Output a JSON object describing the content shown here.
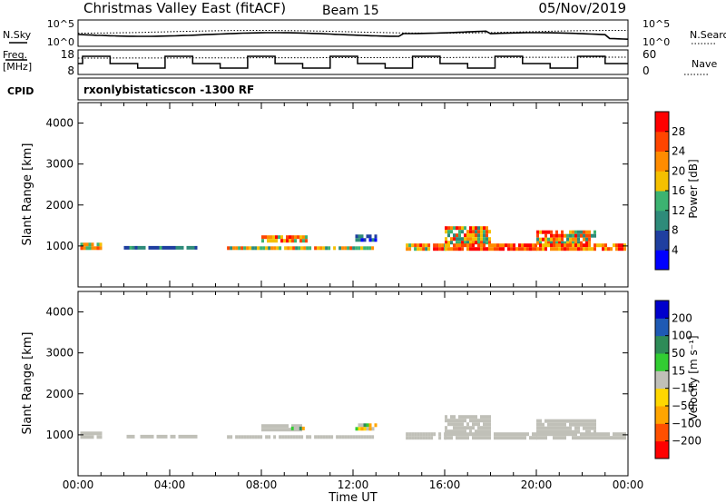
{
  "header": {
    "title": "Christmas Valley East (fitACF)",
    "beam": "Beam 15",
    "date": "05/Nov/2019"
  },
  "strip": {
    "nsky_label": "N.Sky",
    "nsearch_label": "N.Search",
    "noise_top": "10^5",
    "noise_bottom": "10^0",
    "freq_label": "Freq.",
    "freq_unit": "[MHz]",
    "freq_top": "18",
    "freq_bottom": "8",
    "nave_label": "Nave",
    "nave_top": "60",
    "nave_bottom": "0",
    "cpid_label": "CPID",
    "cpid_text": "rxonlybistaticscon  -1300 RF"
  },
  "colors": {
    "power_scale": [
      "#0000ff",
      "#1f3fa0",
      "#2e8b7a",
      "#3cb371",
      "#f5c000",
      "#ff8c00",
      "#ff4500",
      "#ff0000"
    ],
    "velocity_scale": [
      "#0000cc",
      "#1e5ab4",
      "#2e8b57",
      "#32cd32",
      "#c0c0b8",
      "#ffd700",
      "#ffa500",
      "#ff5000",
      "#ff0000"
    ],
    "ground_scatter": "#c0c0b8"
  },
  "chart_data": [
    {
      "type": "heatmap",
      "name": "power",
      "ylabel": "Slant Range [km]",
      "yticks": [
        1000,
        2000,
        3000,
        4000
      ],
      "ylim": [
        0,
        4500
      ],
      "xticks": [
        "00:00",
        "04:00",
        "08:00",
        "12:00",
        "16:00",
        "20:00",
        "00:00"
      ],
      "xlim_hours": [
        0,
        24
      ],
      "colorbar_label": "Power [dB]",
      "colorbar_ticks": [
        "4",
        "8",
        "12",
        "16",
        "20",
        "24",
        "28"
      ],
      "colorbar_range": [
        0,
        30
      ],
      "regions": [
        {
          "t0": 0.1,
          "t1": 1.0,
          "r0": 950,
          "r1": 1080,
          "v0": 10,
          "v1": 24
        },
        {
          "t0": 2.0,
          "t1": 5.2,
          "r0": 960,
          "r1": 1000,
          "v0": 4,
          "v1": 12
        },
        {
          "t0": 6.5,
          "t1": 12.8,
          "r0": 950,
          "r1": 990,
          "v0": 8,
          "v1": 26
        },
        {
          "t0": 8.0,
          "t1": 10.0,
          "r0": 1130,
          "r1": 1260,
          "v0": 10,
          "v1": 28
        },
        {
          "t0": 12.1,
          "t1": 13.0,
          "r0": 1130,
          "r1": 1280,
          "v0": 2,
          "v1": 10
        },
        {
          "t0": 14.3,
          "t1": 16.0,
          "r0": 950,
          "r1": 1060,
          "v0": 10,
          "v1": 28
        },
        {
          "t0": 16.0,
          "t1": 18.0,
          "r0": 1060,
          "r1": 1480,
          "v0": 8,
          "v1": 30
        },
        {
          "t0": 16.0,
          "t1": 20.0,
          "r0": 950,
          "r1": 1060,
          "v0": 18,
          "v1": 30
        },
        {
          "t0": 20.0,
          "t1": 22.5,
          "r0": 1060,
          "r1": 1380,
          "v0": 8,
          "v1": 30
        },
        {
          "t0": 20.0,
          "t1": 23.9,
          "r0": 950,
          "r1": 1060,
          "v0": 16,
          "v1": 30
        }
      ]
    },
    {
      "type": "heatmap",
      "name": "velocity",
      "ylabel": "Slant Range [km]",
      "yticks": [
        1000,
        2000,
        3000,
        4000
      ],
      "ylim": [
        0,
        4500
      ],
      "xticks": [
        "00:00",
        "04:00",
        "08:00",
        "12:00",
        "16:00",
        "20:00",
        "00:00"
      ],
      "xlabel": "Time UT",
      "colorbar_label": "Velocity [m s⁻¹]",
      "colorbar_ticks": [
        "200",
        "100",
        "50",
        "15",
        "−15",
        "−50",
        "−100",
        "−200"
      ],
      "regions": [
        {
          "t0": 0.1,
          "t1": 1.0,
          "r0": 950,
          "r1": 1080,
          "v": "ground"
        },
        {
          "t0": 2.0,
          "t1": 5.2,
          "r0": 960,
          "r1": 1000,
          "v": "ground"
        },
        {
          "t0": 6.5,
          "t1": 12.8,
          "r0": 950,
          "r1": 990,
          "v": "ground"
        },
        {
          "t0": 8.0,
          "t1": 10.0,
          "r0": 1130,
          "r1": 1260,
          "v": "ground"
        },
        {
          "t0": 9.3,
          "t1": 9.8,
          "r0": 1130,
          "r1": 1200,
          "v": "mixed"
        },
        {
          "t0": 12.1,
          "t1": 13.0,
          "r0": 1130,
          "r1": 1280,
          "v": "mixed"
        },
        {
          "t0": 14.3,
          "t1": 16.0,
          "r0": 950,
          "r1": 1060,
          "v": "ground"
        },
        {
          "t0": 16.0,
          "t1": 18.0,
          "r0": 1060,
          "r1": 1480,
          "v": "ground"
        },
        {
          "t0": 16.0,
          "t1": 20.0,
          "r0": 950,
          "r1": 1060,
          "v": "ground"
        },
        {
          "t0": 20.0,
          "t1": 22.5,
          "r0": 1060,
          "r1": 1380,
          "v": "ground"
        },
        {
          "t0": 20.0,
          "t1": 23.9,
          "r0": 950,
          "r1": 1060,
          "v": "ground"
        }
      ]
    }
  ],
  "xlabel": "Time UT"
}
